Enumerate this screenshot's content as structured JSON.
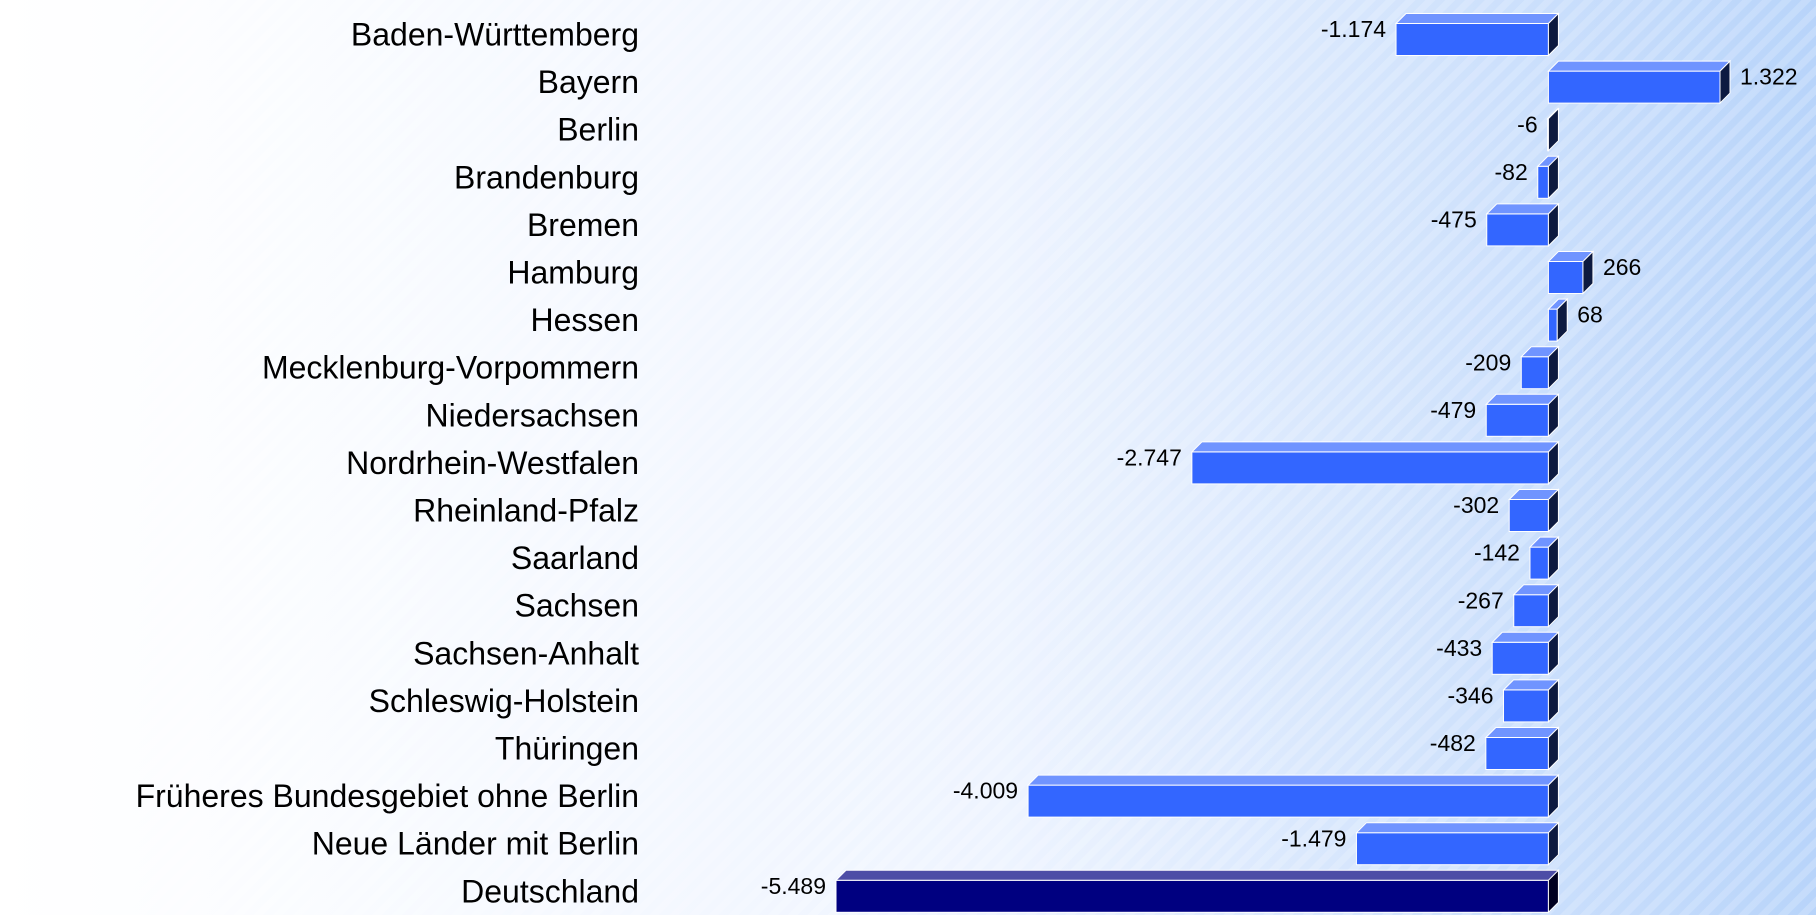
{
  "chart_data": {
    "type": "bar",
    "orientation": "horizontal",
    "categories": [
      "Baden-Württemberg",
      "Bayern",
      "Berlin",
      "Brandenburg",
      "Bremen",
      "Hamburg",
      "Hessen",
      "Mecklenburg-Vorpommern",
      "Niedersachsen",
      "Nordrhein-Westfalen",
      "Rheinland-Pfalz",
      "Saarland",
      "Sachsen",
      "Sachsen-Anhalt",
      "Schleswig-Holstein",
      "Thüringen",
      "Früheres Bundesgebiet ohne Berlin",
      "Neue Länder mit Berlin",
      "Deutschland"
    ],
    "values": [
      -1174,
      1322,
      -6,
      -82,
      -475,
      266,
      68,
      -209,
      -479,
      -2747,
      -302,
      -142,
      -267,
      -433,
      -346,
      -482,
      -4009,
      -1479,
      -5489
    ],
    "value_labels": [
      "-1.174",
      "1.322",
      "-6",
      "-82",
      "-475",
      "266",
      "68",
      "-209",
      "-479",
      "-2.747",
      "-302",
      "-142",
      "-267",
      "-433",
      "-346",
      "-482",
      "-4.009",
      "-1.479",
      "-5.489"
    ],
    "colors": [
      "#3366ff",
      "#3366ff",
      "#3366ff",
      "#3366ff",
      "#3366ff",
      "#3366ff",
      "#3366ff",
      "#3366ff",
      "#3366ff",
      "#3366ff",
      "#3366ff",
      "#3366ff",
      "#3366ff",
      "#3366ff",
      "#3366ff",
      "#3366ff",
      "#3366ff",
      "#3366ff",
      "#000080"
    ]
  }
}
